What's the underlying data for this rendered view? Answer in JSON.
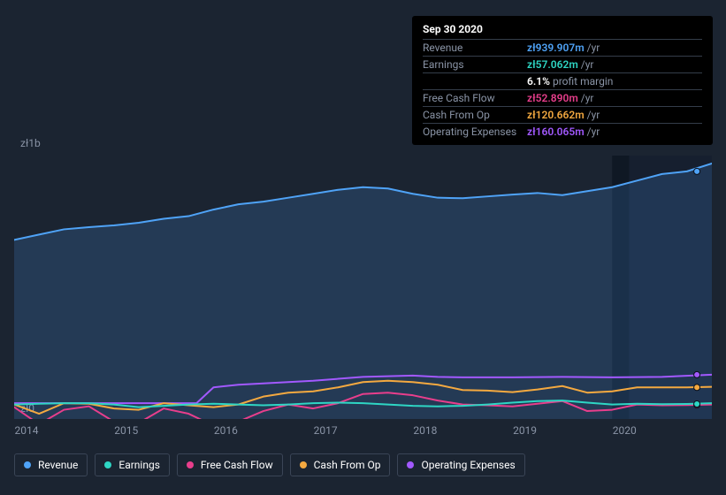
{
  "tooltip": {
    "date": "Sep 30 2020",
    "rows": [
      {
        "label": "Revenue",
        "amount": "zł939.907m",
        "color": "#4fa3f7",
        "unit": "/yr"
      },
      {
        "label": "Earnings",
        "amount": "zł57.062m",
        "color": "#2ed6c4",
        "unit": "/yr",
        "sub": {
          "pct": "6.1%",
          "txt": "profit margin"
        }
      },
      {
        "label": "Free Cash Flow",
        "amount": "zł52.890m",
        "color": "#e83e8c",
        "unit": "/yr"
      },
      {
        "label": "Cash From Op",
        "amount": "zł120.662m",
        "color": "#f4a940",
        "unit": "/yr"
      },
      {
        "label": "Operating Expenses",
        "amount": "zł160.065m",
        "color": "#a259ff",
        "unit": "/yr"
      }
    ]
  },
  "chart": {
    "type": "area-line",
    "background_color": "#1b2431",
    "grid_color": "#2a3340",
    "label_color": "#8a94a6",
    "label_fontsize": 12,
    "x": {
      "min": 2014,
      "max": 2021,
      "ticks": [
        2014,
        2015,
        2016,
        2017,
        2018,
        2019,
        2020
      ]
    },
    "y": {
      "min": 0,
      "max": 1000000000,
      "tick_labels": [
        {
          "text": "zł1b",
          "v": 1000000000
        },
        {
          "text": "zł0",
          "v": 0
        }
      ]
    },
    "highlight_band": {
      "from": 2020.0,
      "to": 2020.17,
      "color": "#0f1824"
    },
    "forecast_band": {
      "from": 2020.17,
      "to": 2021.0,
      "color": "#141d2f",
      "opacity": 0.6
    },
    "marker_x": 2020.85,
    "series": [
      {
        "id": "revenue",
        "label": "Revenue",
        "color": "#4fa3f7",
        "line_width": 2,
        "area": true,
        "area_opacity": 0.18,
        "points": [
          [
            2014.0,
            680
          ],
          [
            2014.25,
            700
          ],
          [
            2014.5,
            720
          ],
          [
            2014.75,
            728
          ],
          [
            2015.0,
            735
          ],
          [
            2015.25,
            745
          ],
          [
            2015.5,
            760
          ],
          [
            2015.75,
            770
          ],
          [
            2016.0,
            795
          ],
          [
            2016.25,
            815
          ],
          [
            2016.5,
            825
          ],
          [
            2016.75,
            840
          ],
          [
            2017.0,
            855
          ],
          [
            2017.25,
            870
          ],
          [
            2017.5,
            880
          ],
          [
            2017.75,
            875
          ],
          [
            2018.0,
            855
          ],
          [
            2018.25,
            840
          ],
          [
            2018.5,
            838
          ],
          [
            2018.75,
            845
          ],
          [
            2019.0,
            852
          ],
          [
            2019.25,
            858
          ],
          [
            2019.5,
            850
          ],
          [
            2019.75,
            865
          ],
          [
            2020.0,
            880
          ],
          [
            2020.25,
            905
          ],
          [
            2020.5,
            930
          ],
          [
            2020.75,
            940
          ],
          [
            2021.0,
            970
          ]
        ]
      },
      {
        "id": "operating_expenses",
        "label": "Operating Expenses",
        "color": "#a259ff",
        "line_width": 2,
        "area": false,
        "points": [
          [
            2014.0,
            60
          ],
          [
            2014.5,
            60
          ],
          [
            2015.0,
            60
          ],
          [
            2015.5,
            60
          ],
          [
            2015.83,
            60
          ],
          [
            2016.0,
            120
          ],
          [
            2016.25,
            130
          ],
          [
            2016.5,
            135
          ],
          [
            2017.0,
            145
          ],
          [
            2017.5,
            160
          ],
          [
            2018.0,
            165
          ],
          [
            2018.25,
            160
          ],
          [
            2018.5,
            158
          ],
          [
            2019.0,
            158
          ],
          [
            2019.5,
            160
          ],
          [
            2020.0,
            158
          ],
          [
            2020.5,
            160
          ],
          [
            2021.0,
            168
          ]
        ]
      },
      {
        "id": "cash_from_op",
        "label": "Cash From Op",
        "color": "#f4a940",
        "line_width": 2,
        "area": false,
        "points": [
          [
            2014.0,
            55
          ],
          [
            2014.25,
            20
          ],
          [
            2014.5,
            60
          ],
          [
            2014.75,
            58
          ],
          [
            2015.0,
            40
          ],
          [
            2015.25,
            35
          ],
          [
            2015.5,
            60
          ],
          [
            2015.75,
            52
          ],
          [
            2016.0,
            45
          ],
          [
            2016.25,
            55
          ],
          [
            2016.5,
            85
          ],
          [
            2016.75,
            100
          ],
          [
            2017.0,
            105
          ],
          [
            2017.25,
            120
          ],
          [
            2017.5,
            140
          ],
          [
            2017.75,
            145
          ],
          [
            2018.0,
            140
          ],
          [
            2018.25,
            130
          ],
          [
            2018.5,
            110
          ],
          [
            2018.75,
            108
          ],
          [
            2019.0,
            102
          ],
          [
            2019.25,
            112
          ],
          [
            2019.5,
            125
          ],
          [
            2019.75,
            100
          ],
          [
            2020.0,
            105
          ],
          [
            2020.25,
            120
          ],
          [
            2020.5,
            120
          ],
          [
            2020.75,
            120
          ],
          [
            2021.0,
            122
          ]
        ]
      },
      {
        "id": "free_cash_flow",
        "label": "Free Cash Flow",
        "color": "#e83e8c",
        "line_width": 2,
        "area": false,
        "points": [
          [
            2014.0,
            45
          ],
          [
            2014.25,
            -20
          ],
          [
            2014.5,
            35
          ],
          [
            2014.75,
            48
          ],
          [
            2015.0,
            -10
          ],
          [
            2015.25,
            -15
          ],
          [
            2015.5,
            40
          ],
          [
            2015.75,
            20
          ],
          [
            2016.0,
            -25
          ],
          [
            2016.25,
            -10
          ],
          [
            2016.5,
            30
          ],
          [
            2016.75,
            55
          ],
          [
            2017.0,
            40
          ],
          [
            2017.25,
            60
          ],
          [
            2017.5,
            95
          ],
          [
            2017.75,
            100
          ],
          [
            2018.0,
            90
          ],
          [
            2018.25,
            70
          ],
          [
            2018.5,
            55
          ],
          [
            2018.75,
            52
          ],
          [
            2019.0,
            48
          ],
          [
            2019.25,
            58
          ],
          [
            2019.5,
            68
          ],
          [
            2019.75,
            30
          ],
          [
            2020.0,
            35
          ],
          [
            2020.25,
            55
          ],
          [
            2020.5,
            52
          ],
          [
            2020.75,
            53
          ],
          [
            2021.0,
            55
          ]
        ]
      },
      {
        "id": "earnings",
        "label": "Earnings",
        "color": "#2ed6c4",
        "line_width": 2,
        "area": false,
        "points": [
          [
            2014.0,
            55
          ],
          [
            2014.25,
            58
          ],
          [
            2014.5,
            60
          ],
          [
            2014.75,
            60
          ],
          [
            2015.0,
            55
          ],
          [
            2015.25,
            45
          ],
          [
            2015.5,
            50
          ],
          [
            2015.75,
            55
          ],
          [
            2016.0,
            58
          ],
          [
            2016.25,
            55
          ],
          [
            2016.5,
            52
          ],
          [
            2016.75,
            55
          ],
          [
            2017.0,
            60
          ],
          [
            2017.25,
            62
          ],
          [
            2017.5,
            60
          ],
          [
            2017.75,
            55
          ],
          [
            2018.0,
            50
          ],
          [
            2018.25,
            48
          ],
          [
            2018.5,
            50
          ],
          [
            2018.75,
            55
          ],
          [
            2019.0,
            62
          ],
          [
            2019.25,
            68
          ],
          [
            2019.5,
            70
          ],
          [
            2019.75,
            62
          ],
          [
            2020.0,
            55
          ],
          [
            2020.25,
            58
          ],
          [
            2020.5,
            56
          ],
          [
            2020.75,
            57
          ],
          [
            2021.0,
            60
          ]
        ]
      }
    ]
  },
  "legend": [
    {
      "id": "revenue",
      "label": "Revenue",
      "color": "#4fa3f7"
    },
    {
      "id": "earnings",
      "label": "Earnings",
      "color": "#2ed6c4"
    },
    {
      "id": "free_cash_flow",
      "label": "Free Cash Flow",
      "color": "#e83e8c"
    },
    {
      "id": "cash_from_op",
      "label": "Cash From Op",
      "color": "#f4a940"
    },
    {
      "id": "operating_expenses",
      "label": "Operating Expenses",
      "color": "#a259ff"
    }
  ]
}
